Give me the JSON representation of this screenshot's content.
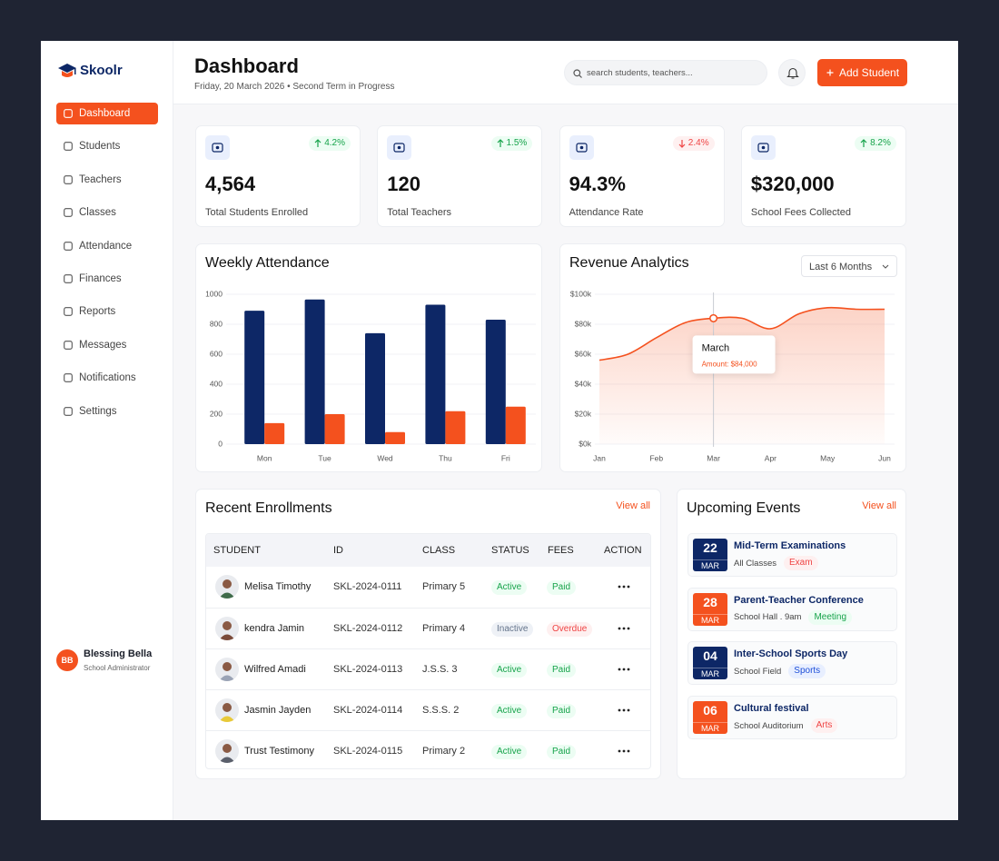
{
  "sidebar": {
    "brand": "Skoolr",
    "nav": [
      "Dashboard",
      "Students",
      "Teachers",
      "Classes",
      "Attendance",
      "Finances",
      "Reports",
      "Messages",
      "Notifications",
      "Settings"
    ],
    "active": 0,
    "user": {
      "initials": "BB",
      "name": "Blessing Bella",
      "role": "School Administrator"
    }
  },
  "header": {
    "title": "Dashboard",
    "subtitle": "Friday, 20 March 2026 • Second Term in Progress",
    "search_placeholder": "search students, teachers...",
    "button": "Add Student"
  },
  "stats": [
    {
      "value": "4,564",
      "label": "Total Students Enrolled",
      "change": "4.2%",
      "trend": "up"
    },
    {
      "value": "120",
      "label": "Total Teachers",
      "change": "1.5%",
      "trend": "up"
    },
    {
      "value": "94.3%",
      "label": "Attendance Rate",
      "change": "2.4%",
      "trend": "down"
    },
    {
      "value": "$320,000",
      "label": "School Fees Collected",
      "change": "8.2%",
      "trend": "up"
    }
  ],
  "chart_data": [
    {
      "type": "bar",
      "title": "Weekly Attendance",
      "categories": [
        "Mon",
        "Tue",
        "Wed",
        "Thu",
        "Fri"
      ],
      "series": [
        {
          "color": "#0d2766",
          "values": [
            890,
            965,
            740,
            930,
            830
          ]
        },
        {
          "color": "#f4511e",
          "values": [
            140,
            200,
            80,
            220,
            250
          ]
        }
      ],
      "ylim": [
        0,
        1000
      ],
      "yticks": [
        0,
        200,
        400,
        600,
        800,
        1000
      ],
      "grid": true
    },
    {
      "type": "area",
      "title": "Revenue Analytics",
      "filter": "Last 6 Months",
      "categories": [
        "Jan",
        null,
        "Feb",
        null,
        "Mar",
        null,
        "Apr",
        null,
        "May",
        null,
        "Jun"
      ],
      "values": [
        56,
        60,
        71,
        81,
        84,
        84,
        77,
        87,
        91,
        90,
        90
      ],
      "color": "#f4511e",
      "ylim": [
        0,
        100
      ],
      "yticks": [
        {
          "value": 0,
          "label": "$0k"
        },
        {
          "value": 20,
          "label": "$20k"
        },
        {
          "value": 40,
          "label": "$40k"
        },
        {
          "value": 60,
          "label": "$60k"
        },
        {
          "value": 80,
          "label": "$80k"
        },
        {
          "value": 100,
          "label": "$100k"
        }
      ],
      "grid": true,
      "annotation": {
        "index": 4,
        "title": "March",
        "text": "Amount: $84,000"
      }
    }
  ],
  "enrollments": {
    "title": "Recent Enrollments",
    "link": "View all",
    "columns": [
      "STUDENT",
      "ID",
      "CLASS",
      "STATUS",
      "FEES",
      "ACTION"
    ],
    "rows": [
      {
        "name": "Melisa Timothy",
        "id": "SKL-2024-0111",
        "class": "Primary 5",
        "status": "Active",
        "fees": "Paid",
        "status_tone": "green",
        "fees_tone": "green",
        "avatar": "#3f6b4a"
      },
      {
        "name": "kendra Jamin",
        "id": "SKL-2024-0112",
        "class": "Primary 4",
        "status": "Inactive",
        "fees": "Overdue",
        "status_tone": "gray",
        "fees_tone": "red",
        "avatar": "#7a4b3a"
      },
      {
        "name": "Wilfred Amadi",
        "id": "SKL-2024-0113",
        "class": "J.S.S. 3",
        "status": "Active",
        "fees": "Paid",
        "status_tone": "green",
        "fees_tone": "green",
        "avatar": "#9aa3b5"
      },
      {
        "name": "Jasmin Jayden",
        "id": "SKL-2024-0114",
        "class": "S.S.S. 2",
        "status": "Active",
        "fees": "Paid",
        "status_tone": "green",
        "fees_tone": "green",
        "avatar": "#e8c938"
      },
      {
        "name": "Trust Testimony",
        "id": "SKL-2024-0115",
        "class": "Primary 2",
        "status": "Active",
        "fees": "Paid",
        "status_tone": "green",
        "fees_tone": "green",
        "avatar": "#5a5f6b"
      }
    ]
  },
  "events": {
    "title": "Upcoming Events",
    "link": "View all",
    "items": [
      {
        "day": "22",
        "month": "MAR",
        "title": "Mid-Term Examinations",
        "location": "All Classes",
        "tag": "Exam",
        "tone": "red",
        "color": "#0d2766"
      },
      {
        "day": "28",
        "month": "MAR",
        "title": "Parent-Teacher Conference",
        "location": "School Hall . 9am",
        "tag": "Meeting",
        "tone": "green",
        "color": "#f4511e"
      },
      {
        "day": "04",
        "month": "MAR",
        "title": "Inter-School Sports Day",
        "location": "School Field",
        "tag": "Sports",
        "tone": "blue",
        "color": "#0d2766"
      },
      {
        "day": "06",
        "month": "MAR",
        "title": "Cultural festival",
        "location": "School Auditorium",
        "tag": "Arts",
        "tone": "red",
        "color": "#f4511e"
      }
    ]
  }
}
